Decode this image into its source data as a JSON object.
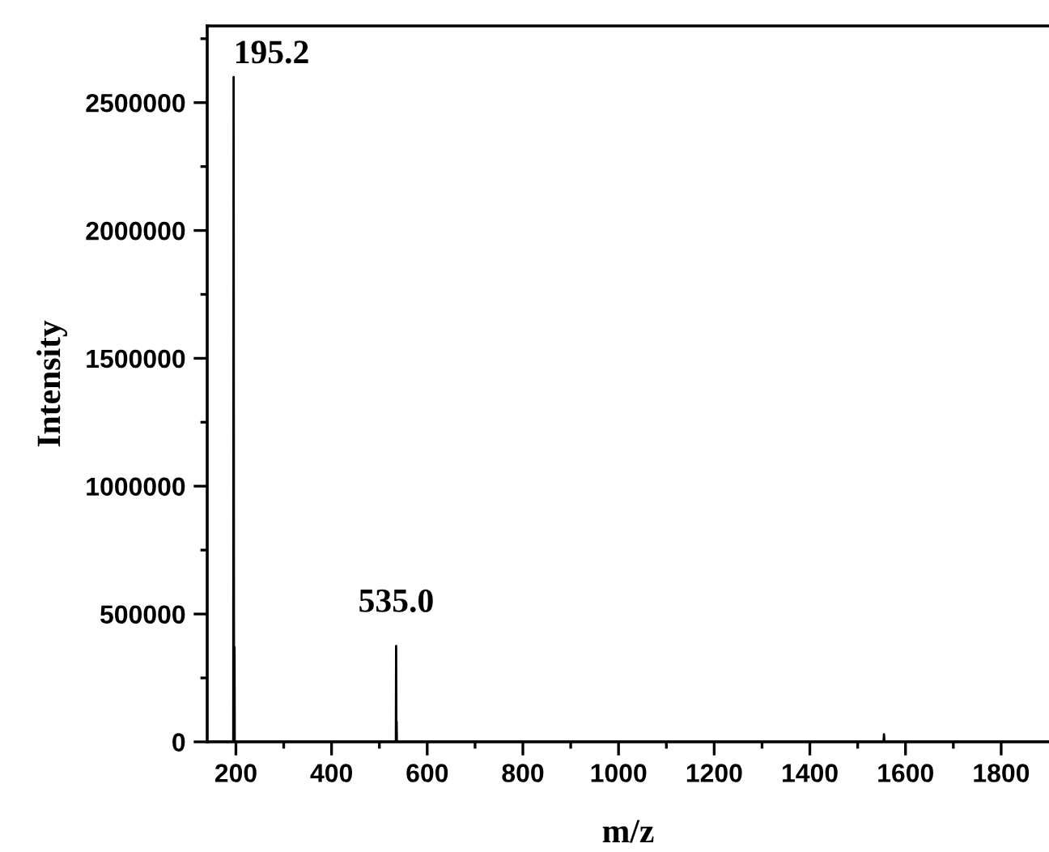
{
  "chart_data": {
    "type": "line",
    "xlabel": "m/z",
    "ylabel": "Intensity",
    "x": [
      140,
      194.5,
      195.2,
      196,
      197,
      197.5,
      534.5,
      535,
      535.5,
      536,
      536.5,
      1554,
      1555,
      1556,
      1900
    ],
    "series": [
      {
        "color": "#000000",
        "values": [
          0,
          0,
          2600000,
          0,
          370000,
          0,
          0,
          375000,
          0,
          80000,
          0,
          0,
          30000,
          0,
          0
        ]
      }
    ],
    "xlim": [
      140,
      1900
    ],
    "ylim": [
      0,
      2800000
    ],
    "xticks": [
      200,
      {
        "value": 300,
        "label": null
      },
      400,
      {
        "value": 500,
        "label": null
      },
      600,
      {
        "value": 700,
        "label": null
      },
      800,
      {
        "value": 900,
        "label": null
      },
      1000,
      {
        "value": 1100,
        "label": null
      },
      1200,
      {
        "value": 1300,
        "label": null
      },
      1400,
      {
        "value": 1500,
        "label": null
      },
      1600,
      {
        "value": 1700,
        "label": null
      },
      1800
    ],
    "yticks": [
      0,
      {
        "value": 250000,
        "label": null
      },
      500000,
      {
        "value": 750000,
        "label": null
      },
      1000000,
      {
        "value": 1250000,
        "label": null
      },
      1500000,
      {
        "value": 1750000,
        "label": null
      },
      2000000,
      {
        "value": 2250000,
        "label": null
      },
      2500000,
      {
        "value": 2750000,
        "label": null
      }
    ],
    "annotations": [
      {
        "text": "195.2",
        "x": 195.2,
        "y": 2600000
      },
      {
        "text": "535.0",
        "x": 535,
        "y": 375000
      }
    ],
    "grid": false,
    "legend": false,
    "marker": "none",
    "line_style": "solid"
  }
}
